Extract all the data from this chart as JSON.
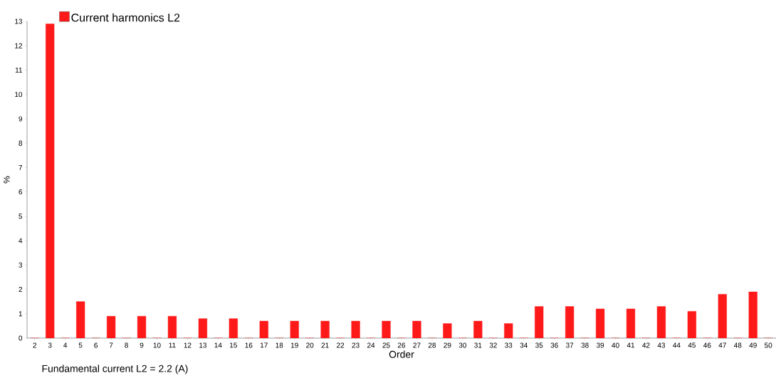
{
  "chart_data": {
    "type": "bar",
    "xlabel": "Order",
    "ylabel": "%",
    "categories": [
      "2",
      "3",
      "4",
      "5",
      "6",
      "7",
      "8",
      "9",
      "10",
      "11",
      "12",
      "13",
      "14",
      "15",
      "16",
      "17",
      "18",
      "19",
      "20",
      "21",
      "22",
      "23",
      "24",
      "25",
      "26",
      "27",
      "28",
      "29",
      "30",
      "31",
      "32",
      "33",
      "34",
      "35",
      "36",
      "37",
      "38",
      "39",
      "40",
      "41",
      "42",
      "43",
      "44",
      "45",
      "46",
      "47",
      "48",
      "49",
      "50"
    ],
    "series": [
      {
        "name": "Current harmonics L2",
        "color": "#ff1a1a",
        "values": [
          0,
          12.9,
          0,
          1.5,
          0,
          0.9,
          0,
          0.9,
          0,
          0.9,
          0,
          0.8,
          0,
          0.8,
          0,
          0.7,
          0,
          0.7,
          0,
          0.7,
          0,
          0.7,
          0,
          0.7,
          0,
          0.7,
          0,
          0.6,
          0,
          0.7,
          0,
          0.6,
          0,
          1.3,
          0,
          1.3,
          0,
          1.2,
          0,
          1.2,
          0,
          1.3,
          0,
          1.1,
          0,
          1.8,
          0,
          1.9,
          0
        ]
      }
    ],
    "ylim": [
      0,
      13
    ],
    "yticks": [
      0,
      1,
      2,
      3,
      4,
      5,
      6,
      7,
      8,
      9,
      10,
      11,
      12,
      13
    ],
    "grid": false,
    "legend": "top left",
    "annotations": [
      "Fundamental current L2 = 2.2 (A)"
    ]
  }
}
